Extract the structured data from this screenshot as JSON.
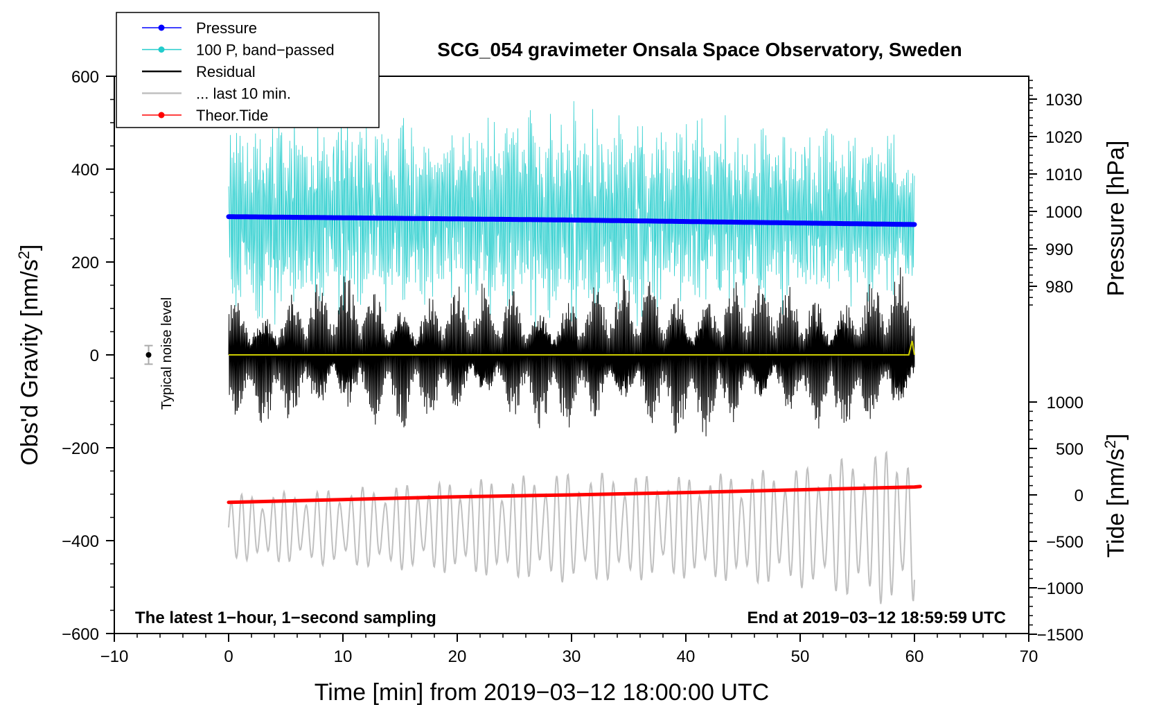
{
  "chart_data": {
    "type": "line",
    "title": "SCG_054 gravimeter Onsala Space Observatory, Sweden",
    "note_left": "The latest 1−hour, 1−second sampling",
    "note_right": "End at 2019−03−12 18:59:59 UTC",
    "xlabel": "Time [min] from 2019−03−12 18:00:00 UTC",
    "ylabel": "Obs'd Gravity [nm/s",
    "ylabel_sup": "2",
    "ylabel_end": "]",
    "y2label": "Pressure [hPa]",
    "y3label": "Tide [nm/s",
    "y3label_sup": "2",
    "y3label_end": "]",
    "noise_label": "Typical noise level",
    "xlim": [
      -10,
      70
    ],
    "ylim": [
      -600,
      600
    ],
    "pressure_range_shown": [
      975,
      1035
    ],
    "tide_range_shown": [
      -1500,
      1000
    ],
    "x_ticks": [
      -10,
      0,
      10,
      20,
      30,
      40,
      50,
      60,
      70
    ],
    "x_tick_labels": [
      "−10",
      "0",
      "10",
      "20",
      "30",
      "40",
      "50",
      "60",
      "70"
    ],
    "y_ticks": [
      -600,
      -400,
      -200,
      0,
      200,
      400,
      600
    ],
    "y_tick_labels": [
      "−600",
      "−400",
      "−200",
      "0",
      "200",
      "400",
      "600"
    ],
    "pressure_ticks": [
      980,
      990,
      1000,
      1010,
      1020,
      1030
    ],
    "pressure_tick_labels": [
      "980",
      "990",
      "1000",
      "1010",
      "1020",
      "1030"
    ],
    "tide_ticks": [
      -1500,
      -1000,
      -500,
      0,
      500,
      1000
    ],
    "tide_tick_labels": [
      "−1500",
      "−1000",
      "−500",
      "0",
      "500",
      "1000"
    ],
    "legend": [
      {
        "label": "Pressure",
        "color": "#0000ff",
        "marker": true
      },
      {
        "label": "100 P, band−passed",
        "color": "#22cccc",
        "marker": true
      },
      {
        "label": "Residual",
        "color": "#000000",
        "marker": false
      },
      {
        "label": "... last 10 min.",
        "color": "#c0c0c0",
        "marker": false
      },
      {
        "label": "Theor.Tide",
        "color": "#ff0000",
        "marker": true
      }
    ],
    "noise_point": {
      "x": -7,
      "y": 0,
      "err": 20
    },
    "series": [
      {
        "name": "Pressure",
        "axis": "pressure",
        "color": "#0000ff",
        "x": [
          0,
          10,
          20,
          30,
          40,
          50,
          60
        ],
        "values": [
          998.6,
          998.3,
          998.0,
          997.7,
          997.3,
          996.9,
          996.5
        ]
      },
      {
        "name": "100 P, band−passed",
        "axis": "gravity",
        "color": "#22cccc",
        "x": [
          0,
          10,
          20,
          30,
          40,
          50,
          60
        ],
        "amplitude": [
          250,
          240,
          230,
          260,
          230,
          220,
          180
        ],
        "mean": 300
      },
      {
        "name": "Residual",
        "axis": "gravity",
        "color": "#000000",
        "x": [
          0,
          10,
          20,
          30,
          40,
          50,
          60
        ],
        "amplitude": [
          150,
          180,
          160,
          170,
          190,
          170,
          200
        ],
        "mean": 0
      },
      {
        "name": "... last 10 min.",
        "axis": "tide",
        "color": "#c0c0c0",
        "x": [
          0,
          10,
          20,
          30,
          40,
          50,
          60
        ],
        "amplitude": [
          350,
          420,
          500,
          600,
          550,
          650,
          900
        ],
        "mean": -350
      },
      {
        "name": "Theor.Tide",
        "axis": "tide",
        "color": "#ff0000",
        "x": [
          0,
          10,
          20,
          30,
          40,
          50,
          60,
          60.5
        ],
        "values": [
          -80,
          -50,
          -20,
          0,
          25,
          55,
          85,
          90
        ]
      },
      {
        "name": "smoothed residual",
        "axis": "gravity",
        "color": "#cccc00",
        "x": [
          0,
          10,
          20,
          30,
          40,
          50,
          59.5,
          59.8,
          60
        ],
        "values": [
          0,
          0,
          0,
          0,
          0,
          0,
          0,
          30,
          0
        ]
      }
    ]
  }
}
